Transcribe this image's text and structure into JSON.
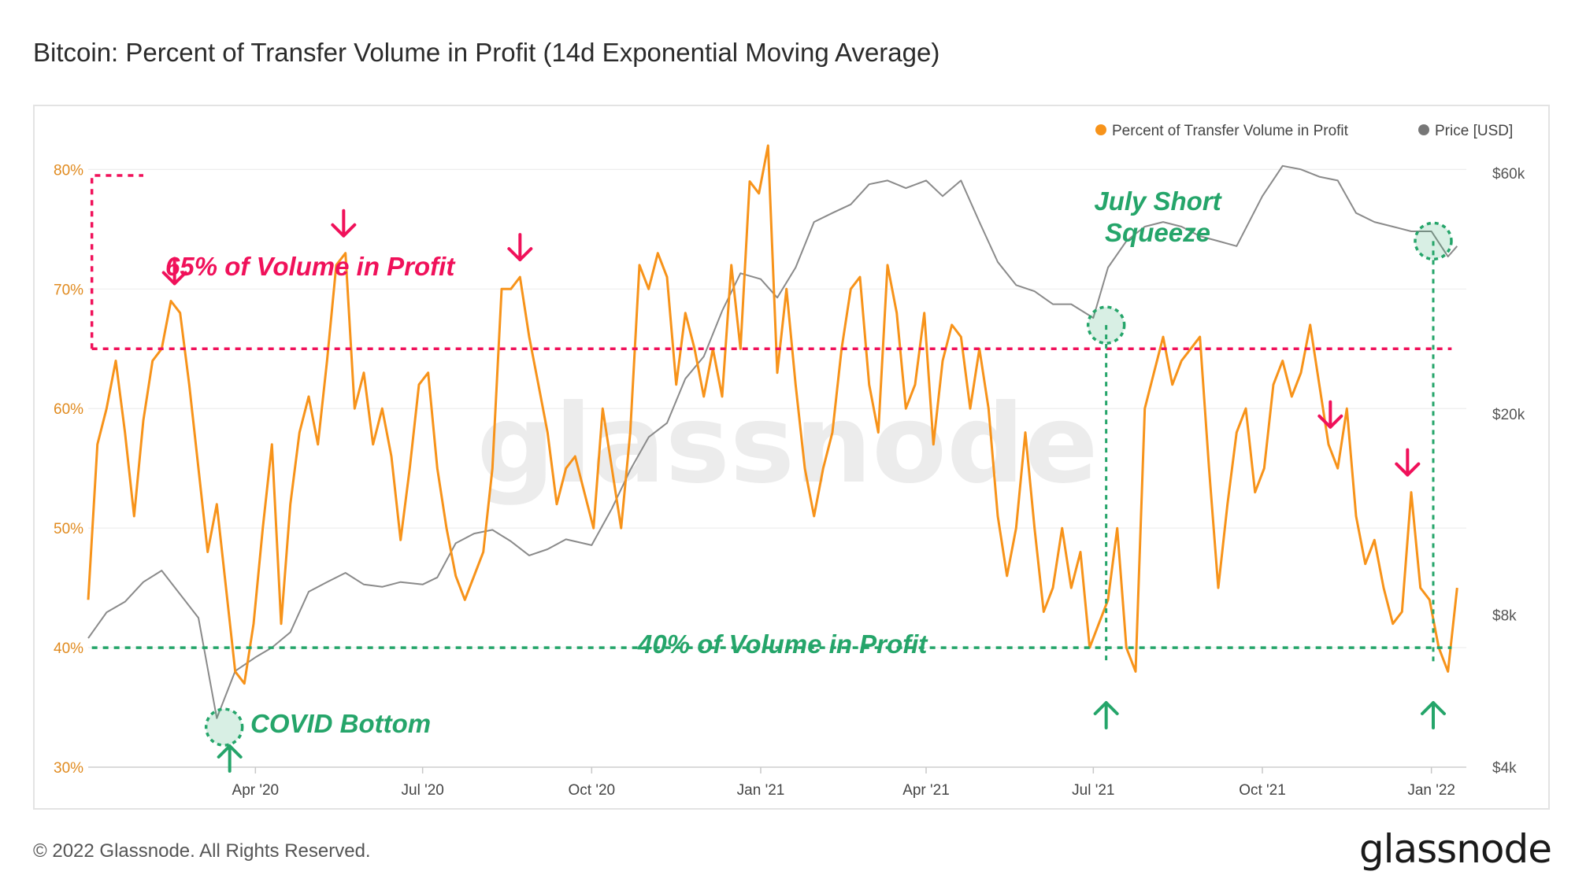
{
  "title": "Bitcoin: Percent of Transfer Volume in Profit (14d Exponential Moving Average)",
  "footer": {
    "copyright": "© 2022 Glassnode. All Rights Reserved.",
    "logo": "glassnode"
  },
  "watermark": "glassnode",
  "colors": {
    "profit": "#f7931a",
    "price": "#8a8a8a",
    "annot_red": "#f0115a",
    "annot_green": "#25a56a",
    "grid": "#eeeeee",
    "axis_left": "#e08a1e"
  },
  "chart_data": {
    "type": "line",
    "x_tick_labels": [
      "Apr '20",
      "Jul '20",
      "Oct '20",
      "Jan '21",
      "Apr '21",
      "Jul '21",
      "Oct '21",
      "Jan '22"
    ],
    "x_tick_days": [
      91,
      182,
      274,
      366,
      456,
      547,
      639,
      731
    ],
    "x_range_days": [
      0,
      750
    ],
    "y_left": {
      "label": "Percent of Transfer Volume in Profit",
      "ticks": [
        "30%",
        "40%",
        "50%",
        "60%",
        "70%",
        "80%"
      ],
      "tick_values": [
        30,
        40,
        50,
        60,
        70,
        80
      ],
      "range": [
        30,
        82
      ]
    },
    "y_right": {
      "label": "Price [USD]",
      "scale": "log",
      "ticks": [
        "$4k",
        "$8k",
        "$20k",
        "$60k"
      ],
      "tick_values": [
        4000,
        8000,
        20000,
        60000
      ],
      "range": [
        4000,
        68000
      ]
    },
    "legend": {
      "position": "top-right",
      "items": [
        "Percent of Transfer Volume in Profit",
        "Price [USD]"
      ]
    },
    "series": [
      {
        "name": "Percent of Transfer Volume in Profit",
        "unit": "%",
        "axis": "left",
        "x_days": [
          0,
          5,
          10,
          15,
          20,
          25,
          30,
          35,
          40,
          45,
          50,
          55,
          60,
          65,
          70,
          75,
          80,
          85,
          90,
          95,
          100,
          105,
          110,
          115,
          120,
          125,
          130,
          135,
          140,
          145,
          150,
          155,
          160,
          165,
          170,
          175,
          180,
          185,
          190,
          195,
          200,
          205,
          210,
          215,
          220,
          225,
          230,
          235,
          240,
          245,
          250,
          255,
          260,
          265,
          270,
          275,
          280,
          285,
          290,
          295,
          300,
          305,
          310,
          315,
          320,
          325,
          330,
          335,
          340,
          345,
          350,
          355,
          360,
          365,
          370,
          375,
          380,
          385,
          390,
          395,
          400,
          405,
          410,
          415,
          420,
          425,
          430,
          435,
          440,
          445,
          450,
          455,
          460,
          465,
          470,
          475,
          480,
          485,
          490,
          495,
          500,
          505,
          510,
          515,
          520,
          525,
          530,
          535,
          540,
          545,
          550,
          555,
          560,
          565,
          570,
          575,
          580,
          585,
          590,
          595,
          600,
          605,
          610,
          615,
          620,
          625,
          630,
          635,
          640,
          645,
          650,
          655,
          660,
          665,
          670,
          675,
          680,
          685,
          690,
          695,
          700,
          705,
          710,
          715,
          720,
          725,
          730,
          735,
          740,
          745
        ],
        "values": [
          44,
          57,
          60,
          64,
          58,
          51,
          59,
          64,
          65,
          69,
          68,
          62,
          55,
          48,
          52,
          45,
          38,
          37,
          42,
          50,
          57,
          42,
          52,
          58,
          61,
          57,
          64,
          72,
          73,
          60,
          63,
          57,
          60,
          56,
          49,
          55,
          62,
          63,
          55,
          50,
          46,
          44,
          46,
          48,
          55,
          70,
          70,
          71,
          66,
          62,
          58,
          52,
          55,
          56,
          53,
          50,
          60,
          55,
          50,
          58,
          72,
          70,
          73,
          71,
          62,
          68,
          65,
          61,
          65,
          61,
          72,
          65,
          79,
          78,
          82,
          63,
          70,
          62,
          55,
          51,
          55,
          58,
          65,
          70,
          71,
          62,
          58,
          72,
          68,
          60,
          62,
          68,
          57,
          64,
          67,
          66,
          60,
          65,
          60,
          51,
          46,
          50,
          58,
          50,
          43,
          45,
          50,
          45,
          48,
          40,
          42,
          44,
          50,
          40,
          38,
          60,
          63,
          66,
          62,
          64,
          65,
          66,
          55,
          45,
          52,
          58,
          60,
          53,
          55,
          62,
          64,
          61,
          63,
          67,
          62,
          57,
          55,
          60,
          51,
          47,
          49,
          45,
          42,
          43,
          53,
          45,
          44,
          40,
          38,
          45
        ]
      },
      {
        "name": "Price [USD]",
        "unit": "USD",
        "axis": "right",
        "x_days": [
          0,
          10,
          20,
          30,
          40,
          50,
          60,
          70,
          80,
          91,
          100,
          110,
          120,
          130,
          140,
          150,
          160,
          170,
          182,
          190,
          200,
          210,
          220,
          230,
          240,
          250,
          260,
          274,
          285,
          295,
          305,
          315,
          325,
          335,
          345,
          355,
          366,
          375,
          385,
          395,
          405,
          415,
          425,
          435,
          445,
          456,
          465,
          475,
          485,
          495,
          505,
          515,
          525,
          535,
          547,
          555,
          565,
          575,
          585,
          595,
          605,
          615,
          625,
          639,
          650,
          660,
          670,
          680,
          690,
          700,
          710,
          720,
          731,
          740,
          745
        ],
        "values": [
          7200,
          8100,
          8500,
          9300,
          9800,
          8800,
          7900,
          5000,
          6200,
          6600,
          6900,
          7400,
          8900,
          9300,
          9700,
          9200,
          9100,
          9300,
          9200,
          9500,
          11100,
          11600,
          11800,
          11200,
          10500,
          10800,
          11300,
          11000,
          13000,
          15500,
          18000,
          19200,
          23500,
          26000,
          32000,
          38000,
          37000,
          34000,
          39000,
          48000,
          50000,
          52000,
          57000,
          58000,
          56000,
          58000,
          54000,
          58000,
          48000,
          40000,
          36000,
          35000,
          33000,
          33000,
          31000,
          39000,
          44000,
          47000,
          48000,
          47000,
          45000,
          44000,
          43000,
          54000,
          62000,
          61000,
          59000,
          58000,
          50000,
          48000,
          47000,
          46000,
          46000,
          41000,
          43000
        ]
      }
    ],
    "annotations": {
      "thresholds": [
        {
          "text": "65% of Volume in Profit",
          "value": 65
        },
        {
          "text": "40% of Volume in Profit",
          "value": 40
        }
      ],
      "labels": [
        "COVID Bottom",
        "July Short Squeeze"
      ],
      "red_arrow_days": [
        47,
        139,
        235,
        676,
        718
      ],
      "green_arrow_days": [
        77,
        554,
        732
      ],
      "circle_events": [
        {
          "day": 74,
          "price": 4800
        },
        {
          "day": 554,
          "price": 30000
        },
        {
          "day": 732,
          "price": 44000
        }
      ]
    }
  }
}
